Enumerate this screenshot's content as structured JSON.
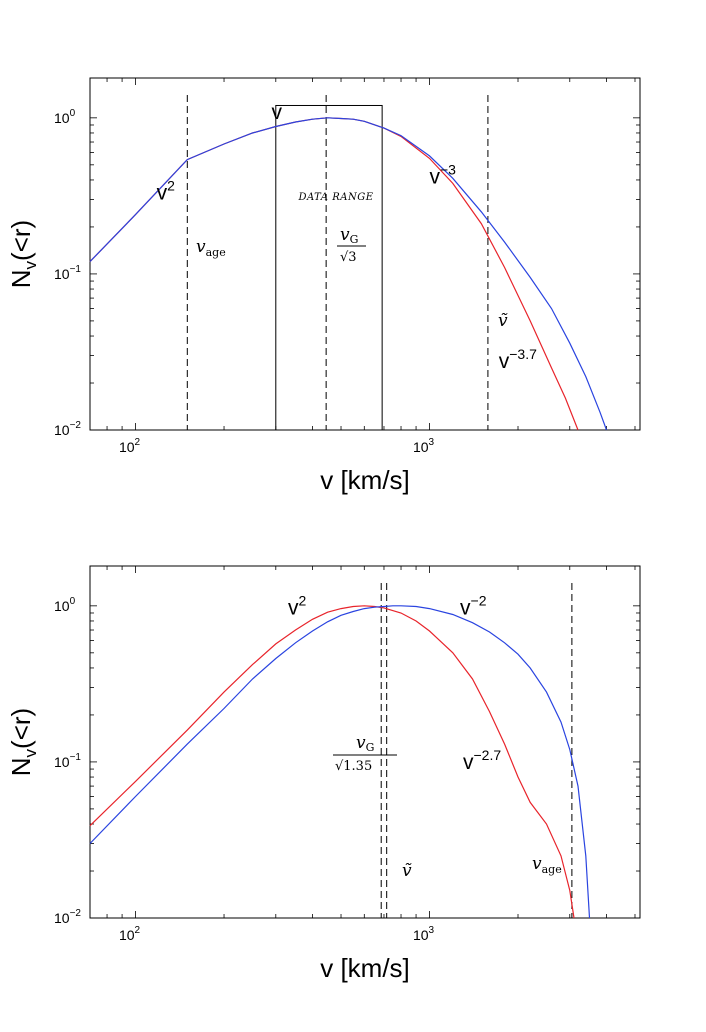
{
  "chart_data": [
    {
      "type": "line",
      "xlabel": "v [km/s]",
      "ylabel": "N_v(<r)",
      "x_scale": "log",
      "y_scale": "log",
      "xlim": [
        70,
        5200
      ],
      "ylim": [
        0.01,
        1.8
      ],
      "x_ticks": [
        100,
        1000
      ],
      "x_tick_labels": [
        {
          "base": "10",
          "exp": "2"
        },
        {
          "base": "10",
          "exp": "3"
        }
      ],
      "y_ticks": [
        1,
        0.1,
        0.01
      ],
      "y_tick_labels": [
        {
          "base": "10",
          "exp": "0"
        },
        {
          "base": "10",
          "exp": "−1"
        },
        {
          "base": "10",
          "exp": "−2"
        }
      ],
      "series": [
        {
          "color": "#e8242b",
          "x": [
            70,
            100,
            150,
            200,
            250,
            300,
            350,
            400,
            450,
            500,
            550,
            600,
            700,
            800,
            1000,
            1200,
            1500,
            1800,
            2200,
            2600,
            2900,
            3200
          ],
          "y": [
            0.12,
            0.24,
            0.54,
            0.68,
            0.8,
            0.88,
            0.94,
            0.98,
            1.0,
            0.99,
            0.98,
            0.95,
            0.86,
            0.76,
            0.55,
            0.38,
            0.21,
            0.11,
            0.05,
            0.025,
            0.016,
            0.01
          ]
        },
        {
          "color": "#2a44e0",
          "x": [
            70,
            100,
            150,
            200,
            250,
            300,
            350,
            400,
            450,
            500,
            550,
            600,
            700,
            800,
            1000,
            1200,
            1500,
            1800,
            2200,
            2600,
            3000,
            3400,
            3800,
            4000
          ],
          "y": [
            0.12,
            0.24,
            0.54,
            0.68,
            0.8,
            0.88,
            0.94,
            0.98,
            1.0,
            0.99,
            0.98,
            0.95,
            0.86,
            0.77,
            0.57,
            0.41,
            0.25,
            0.16,
            0.095,
            0.06,
            0.036,
            0.022,
            0.013,
            0.01
          ]
        }
      ],
      "vlines": [
        150,
        445,
        1580
      ],
      "range_box": {
        "x": [
          300,
          690
        ],
        "y": [
          0.01,
          1.2
        ],
        "label": "DATA RANGE"
      },
      "annotations": [
        {
          "text": "v",
          "exp": "2",
          "at": [
            118,
            0.3
          ]
        },
        {
          "text": "v",
          "exp": "",
          "at": [
            290,
            0.98
          ]
        },
        {
          "text": "v",
          "exp": "−3",
          "at": [
            1000,
            0.38
          ]
        },
        {
          "text": "v",
          "exp": "−3.7",
          "at": [
            1720,
            0.025
          ]
        }
      ],
      "math_labels": {
        "v_age": {
          "sym": "v",
          "sub": "age",
          "at": [
            158,
            0.18
          ]
        },
        "vG_sqrt3": {
          "num_sym": "v",
          "num_sub": "G",
          "den": "√3",
          "at": [
            440,
            0.15
          ]
        },
        "v_tilde": {
          "sym": "ṽ",
          "at": [
            1610,
            0.025
          ]
        }
      }
    },
    {
      "type": "line",
      "xlabel": "v [km/s]",
      "ylabel": "N_v(<r)",
      "x_scale": "log",
      "y_scale": "log",
      "xlim": [
        70,
        5200
      ],
      "ylim": [
        0.01,
        1.8
      ],
      "x_ticks": [
        100,
        1000
      ],
      "x_tick_labels": [
        {
          "base": "10",
          "exp": "2"
        },
        {
          "base": "10",
          "exp": "3"
        }
      ],
      "y_ticks": [
        1,
        0.1,
        0.01
      ],
      "y_tick_labels": [
        {
          "base": "10",
          "exp": "0"
        },
        {
          "base": "10",
          "exp": "−1"
        },
        {
          "base": "10",
          "exp": "−2"
        }
      ],
      "series": [
        {
          "color": "#e8242b",
          "x": [
            70,
            100,
            150,
            200,
            250,
            300,
            350,
            400,
            450,
            500,
            550,
            600,
            650,
            700,
            800,
            900,
            1000,
            1200,
            1400,
            1600,
            1800,
            2000,
            2200,
            2500,
            2800,
            3000,
            3100
          ],
          "y": [
            0.039,
            0.075,
            0.16,
            0.28,
            0.42,
            0.57,
            0.7,
            0.82,
            0.91,
            0.96,
            0.99,
            1.0,
            0.99,
            0.97,
            0.9,
            0.8,
            0.69,
            0.5,
            0.34,
            0.21,
            0.13,
            0.08,
            0.055,
            0.04,
            0.025,
            0.015,
            0.01
          ]
        },
        {
          "color": "#2a44e0",
          "x": [
            70,
            100,
            150,
            200,
            250,
            300,
            350,
            400,
            450,
            500,
            550,
            600,
            650,
            700,
            750,
            800,
            900,
            1000,
            1200,
            1400,
            1600,
            1800,
            2000,
            2200,
            2500,
            2800,
            3000,
            3200,
            3400,
            3500
          ],
          "y": [
            0.03,
            0.06,
            0.13,
            0.22,
            0.34,
            0.46,
            0.58,
            0.69,
            0.79,
            0.87,
            0.92,
            0.96,
            0.98,
            0.99,
            1.0,
            1.0,
            0.99,
            0.96,
            0.88,
            0.78,
            0.68,
            0.58,
            0.49,
            0.4,
            0.28,
            0.18,
            0.12,
            0.07,
            0.025,
            0.01
          ]
        }
      ],
      "vlines": [
        685,
        715,
        3050
      ],
      "annotations": [
        {
          "text": "v",
          "exp": "2",
          "at": [
            330,
            0.88
          ]
        },
        {
          "text": "v",
          "exp": "−2",
          "at": [
            1270,
            0.88
          ]
        },
        {
          "text": "v",
          "exp": "−2.7",
          "at": [
            1300,
            0.09
          ]
        }
      ],
      "math_labels": {
        "vG_sqrt135": {
          "num_sym": "v",
          "num_sub": "G",
          "den": "√1.35",
          "at": [
            420,
            0.12
          ]
        },
        "v_tilde": {
          "sym": "ṽ",
          "at": [
            740,
            0.023
          ]
        },
        "v_age": {
          "sym": "v",
          "sub": "age",
          "at": [
            2500,
            0.022
          ]
        }
      }
    }
  ]
}
